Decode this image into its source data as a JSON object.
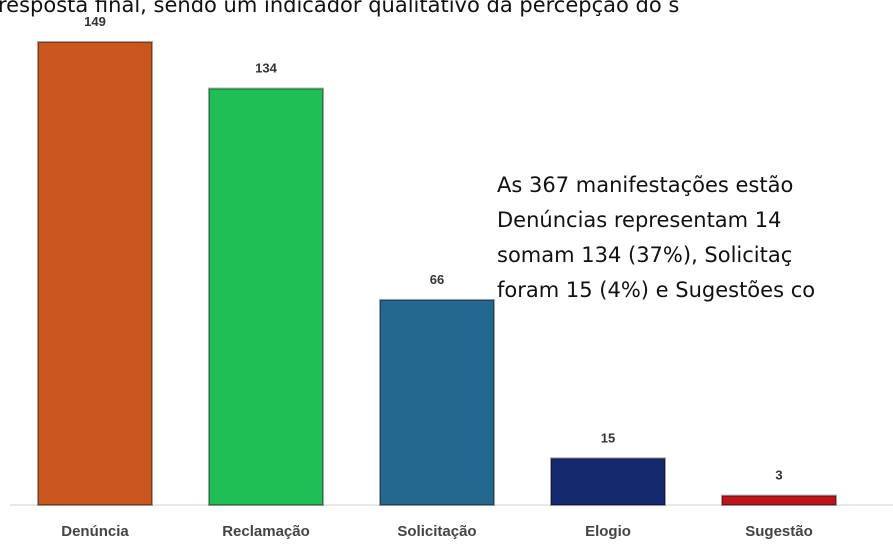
{
  "document": {
    "top_line": "resposta final, sendo um indicador qualitativo da percepção do s",
    "paragraph_lines": [
      "As 367 manifestações estão",
      "Denúncias representam 14",
      "somam 134 (37%), Solicitaç",
      "foram 15 (4%) e Sugestões co"
    ]
  },
  "chart_data": {
    "type": "bar",
    "categories": [
      "Denúncia",
      "Reclamação",
      "Solicitação",
      "Elogio",
      "Sugestão"
    ],
    "values": [
      149,
      134,
      66,
      15,
      3
    ],
    "colors": [
      "#c8561d",
      "#1fbf55",
      "#23698f",
      "#14286e",
      "#c0141c"
    ]
  }
}
